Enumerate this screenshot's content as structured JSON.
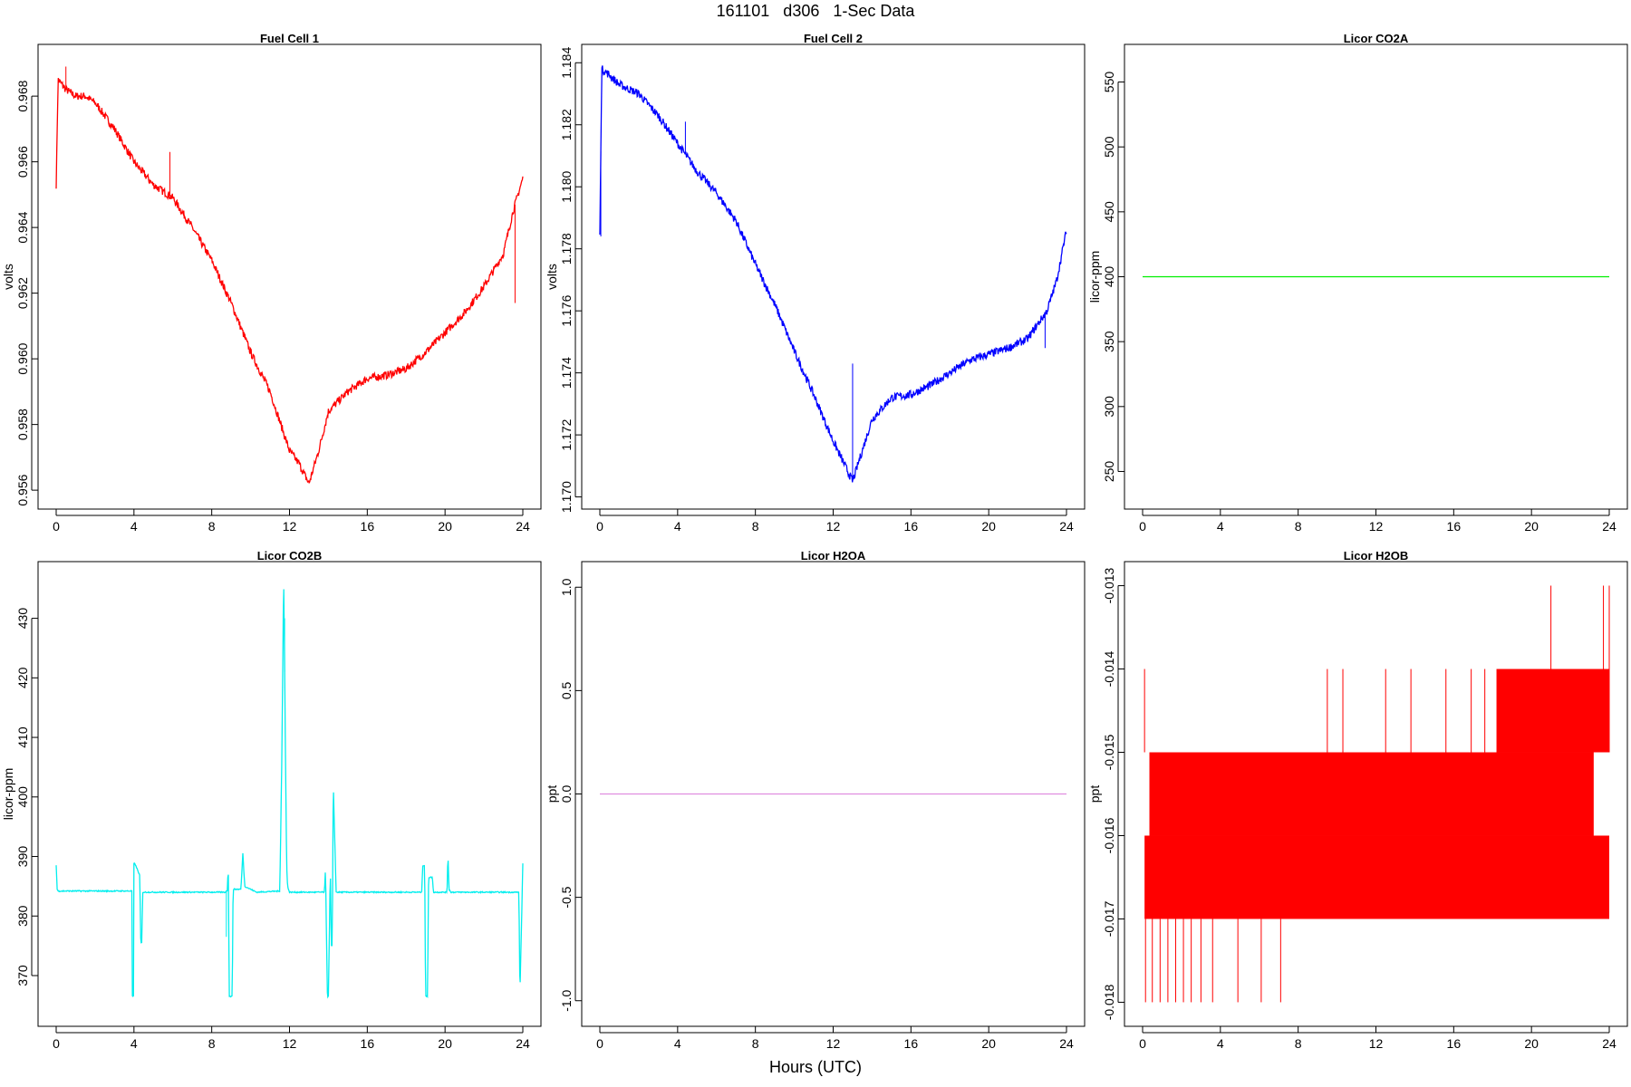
{
  "title": "161101   d306   1-Sec Data",
  "xlabel": "Hours (UTC)",
  "chart_data": [
    {
      "type": "line",
      "title": "Fuel Cell 1",
      "ylabel": "volts",
      "color": "#ff0000",
      "xlim": [
        0,
        24
      ],
      "xticks": [
        0,
        4,
        8,
        12,
        16,
        20,
        24
      ],
      "ylim": [
        0.9557,
        0.9693
      ],
      "yticks": [
        0.956,
        0.958,
        0.96,
        0.962,
        0.964,
        0.966,
        0.968
      ],
      "ytick_labels": [
        "0.956",
        "0.958",
        "0.960",
        "0.962",
        "0.964",
        "0.966",
        "0.968"
      ],
      "noise": 0.00012,
      "x": [
        0,
        0.1,
        0.5,
        1,
        1.5,
        2,
        3,
        4,
        5,
        6,
        7,
        8,
        9,
        10,
        11,
        12,
        12.5,
        13,
        13.5,
        14,
        15,
        16,
        17,
        18,
        19,
        20,
        21,
        22,
        23,
        23.5,
        24
      ],
      "y": [
        0.9653,
        0.9685,
        0.9682,
        0.968,
        0.968,
        0.9678,
        0.967,
        0.966,
        0.9653,
        0.9649,
        0.964,
        0.963,
        0.9617,
        0.9602,
        0.959,
        0.9572,
        0.9568,
        0.9562,
        0.9572,
        0.9584,
        0.959,
        0.9594,
        0.9595,
        0.9597,
        0.9602,
        0.9608,
        0.9614,
        0.9622,
        0.9632,
        0.9645,
        0.9655
      ],
      "spikes": [
        {
          "x": 0.5,
          "y": 0.9689
        },
        {
          "x": 5.85,
          "y": 0.9663
        },
        {
          "x": 23.6,
          "y": 0.9617
        }
      ]
    },
    {
      "type": "line",
      "title": "Fuel Cell 2",
      "ylabel": "volts",
      "color": "#0000ff",
      "xlim": [
        0,
        24
      ],
      "xticks": [
        0,
        4,
        8,
        12,
        16,
        20,
        24
      ],
      "ylim": [
        1.1699,
        1.1843
      ],
      "yticks": [
        1.17,
        1.172,
        1.174,
        1.176,
        1.178,
        1.18,
        1.182,
        1.184
      ],
      "ytick_labels": [
        "1.170",
        "1.172",
        "1.174",
        "1.176",
        "1.178",
        "1.180",
        "1.182",
        "1.184"
      ],
      "noise": 0.00013,
      "x": [
        0,
        0.1,
        0.5,
        1,
        2,
        3,
        4,
        5,
        6,
        7,
        8,
        9,
        10,
        11,
        12,
        13,
        14,
        15,
        16,
        17,
        18,
        19,
        20,
        21,
        22,
        23,
        23.5,
        24
      ],
      "y": [
        1.1785,
        1.1838,
        1.1836,
        1.1833,
        1.183,
        1.1823,
        1.1814,
        1.1805,
        1.1798,
        1.1789,
        1.1775,
        1.1762,
        1.1747,
        1.1733,
        1.1718,
        1.1705,
        1.1725,
        1.1732,
        1.1733,
        1.1736,
        1.174,
        1.1744,
        1.1746,
        1.1748,
        1.1751,
        1.176,
        1.177,
        1.1786
      ],
      "spikes": [
        {
          "x": 0.05,
          "y": 1.1784
        },
        {
          "x": 4.4,
          "y": 1.1821
        },
        {
          "x": 13.0,
          "y": 1.1743
        },
        {
          "x": 22.9,
          "y": 1.1748
        }
      ]
    },
    {
      "type": "line",
      "title": "Licor CO2A",
      "ylabel": "licor-ppm",
      "color": "#00ee00",
      "xlim": [
        0,
        24
      ],
      "xticks": [
        0,
        4,
        8,
        12,
        16,
        20,
        24
      ],
      "ylim": [
        228,
        572
      ],
      "yticks": [
        250,
        300,
        350,
        400,
        450,
        500,
        550
      ],
      "ytick_labels": [
        "250",
        "300",
        "350",
        "400",
        "450",
        "500",
        "550"
      ],
      "noise": 0,
      "x": [
        0,
        24
      ],
      "y": [
        400,
        400
      ]
    },
    {
      "type": "line",
      "title": "Licor CO2B",
      "ylabel": "licor-ppm",
      "color": "#00eeee",
      "xlim": [
        0,
        24
      ],
      "xticks": [
        0,
        4,
        8,
        12,
        16,
        20,
        24
      ],
      "ylim": [
        363,
        438
      ],
      "yticks": [
        370,
        380,
        390,
        400,
        410,
        420,
        430
      ],
      "ytick_labels": [
        "370",
        "380",
        "390",
        "400",
        "410",
        "420",
        "430"
      ],
      "noise": 0.1,
      "x": [
        0,
        0.05,
        0.1,
        3.9,
        3.91,
        3.98,
        4.0,
        4.05,
        4.3,
        4.35,
        4.4,
        4.45,
        8.7,
        8.8,
        8.85,
        8.9,
        9.05,
        9.1,
        9.5,
        9.6,
        9.7,
        10.3,
        11.5,
        11.6,
        11.7,
        11.8,
        11.85,
        11.9,
        12.0,
        12.2,
        13.8,
        13.85,
        13.95,
        14.0,
        14.1,
        14.15,
        14.2,
        14.25,
        14.3,
        14.4,
        14.5,
        18.8,
        18.85,
        18.95,
        19.0,
        19.1,
        19.15,
        19.35,
        19.4,
        19.45,
        20.1,
        20.15,
        20.2,
        20.3,
        23.8,
        23.85,
        24
      ],
      "y": [
        388.5,
        384.5,
        384.2,
        384.2,
        366.5,
        366.5,
        388.8,
        388.8,
        386.8,
        375.5,
        375.5,
        384,
        384,
        384.3,
        388.5,
        366.5,
        366.5,
        384.5,
        384.5,
        390.5,
        385,
        384,
        384.2,
        405,
        437,
        405,
        389,
        385,
        384,
        384,
        384,
        388,
        366.5,
        366.5,
        388,
        375,
        375,
        403,
        396,
        384,
        384,
        384,
        388.5,
        388.5,
        366.5,
        366.5,
        386.5,
        386.5,
        384,
        384,
        384,
        390.5,
        384.5,
        384,
        384,
        366.5,
        388.8
      ],
      "spikes": [
        {
          "x": 8.75,
          "y": 376.5
        },
        {
          "x": 11.75,
          "y": 430
        },
        {
          "x": 14.3,
          "y": 396
        }
      ]
    },
    {
      "type": "line",
      "title": "Licor H2OA",
      "ylabel": "ppt",
      "color": "#e08ee0",
      "xlim": [
        0,
        24
      ],
      "xticks": [
        0,
        4,
        8,
        12,
        16,
        20,
        24
      ],
      "ylim": [
        -1.08,
        1.08
      ],
      "yticks": [
        -1,
        -0.5,
        0,
        0.5,
        1
      ],
      "ytick_labels": [
        "-1.0",
        "-0.5",
        "0.0",
        "0.5",
        "1.0"
      ],
      "noise": 0,
      "x": [
        0,
        24
      ],
      "y": [
        0,
        0
      ]
    },
    {
      "type": "line",
      "title": "Licor H2OB",
      "ylabel": "ppt",
      "color": "#ff0000",
      "xlim": [
        0,
        24
      ],
      "xticks": [
        0,
        4,
        8,
        12,
        16,
        20,
        24
      ],
      "ylim": [
        -0.01818,
        -0.01282
      ],
      "yticks": [
        -0.018,
        -0.017,
        -0.016,
        -0.015,
        -0.014,
        -0.013
      ],
      "ytick_labels": [
        "-0.018",
        "-0.017",
        "-0.016",
        "-0.015",
        "-0.014",
        "-0.013"
      ],
      "noise": 0,
      "bands": [
        {
          "x0": 0.1,
          "x1": 24,
          "y0": -0.017,
          "y1": -0.016
        },
        {
          "x0": 0.35,
          "x1": 23.2,
          "y0": -0.016,
          "y1": -0.015
        },
        {
          "x0": 18.2,
          "x1": 24,
          "y0": -0.015,
          "y1": -0.014
        }
      ],
      "x": [
        0,
        24
      ],
      "y": [
        -0.016,
        -0.016
      ],
      "spikes_up": [
        {
          "x": 0.1,
          "y": -0.014
        },
        {
          "x": 9.5,
          "y": -0.014
        },
        {
          "x": 10.3,
          "y": -0.014
        },
        {
          "x": 12.5,
          "y": -0.014
        },
        {
          "x": 13.8,
          "y": -0.014
        },
        {
          "x": 15.6,
          "y": -0.014
        },
        {
          "x": 16.9,
          "y": -0.014
        },
        {
          "x": 17.6,
          "y": -0.014
        },
        {
          "x": 21.0,
          "y": -0.013
        },
        {
          "x": 23.7,
          "y": -0.013
        },
        {
          "x": 24.0,
          "y": -0.013
        }
      ],
      "spikes_down": [
        {
          "x": 0.15,
          "y": -0.018
        },
        {
          "x": 0.5,
          "y": -0.018
        },
        {
          "x": 0.9,
          "y": -0.018
        },
        {
          "x": 1.3,
          "y": -0.018
        },
        {
          "x": 1.7,
          "y": -0.018
        },
        {
          "x": 2.1,
          "y": -0.018
        },
        {
          "x": 2.5,
          "y": -0.018
        },
        {
          "x": 3.0,
          "y": -0.018
        },
        {
          "x": 3.6,
          "y": -0.018
        },
        {
          "x": 4.9,
          "y": -0.018
        },
        {
          "x": 6.1,
          "y": -0.018
        },
        {
          "x": 7.1,
          "y": -0.018
        }
      ]
    }
  ]
}
